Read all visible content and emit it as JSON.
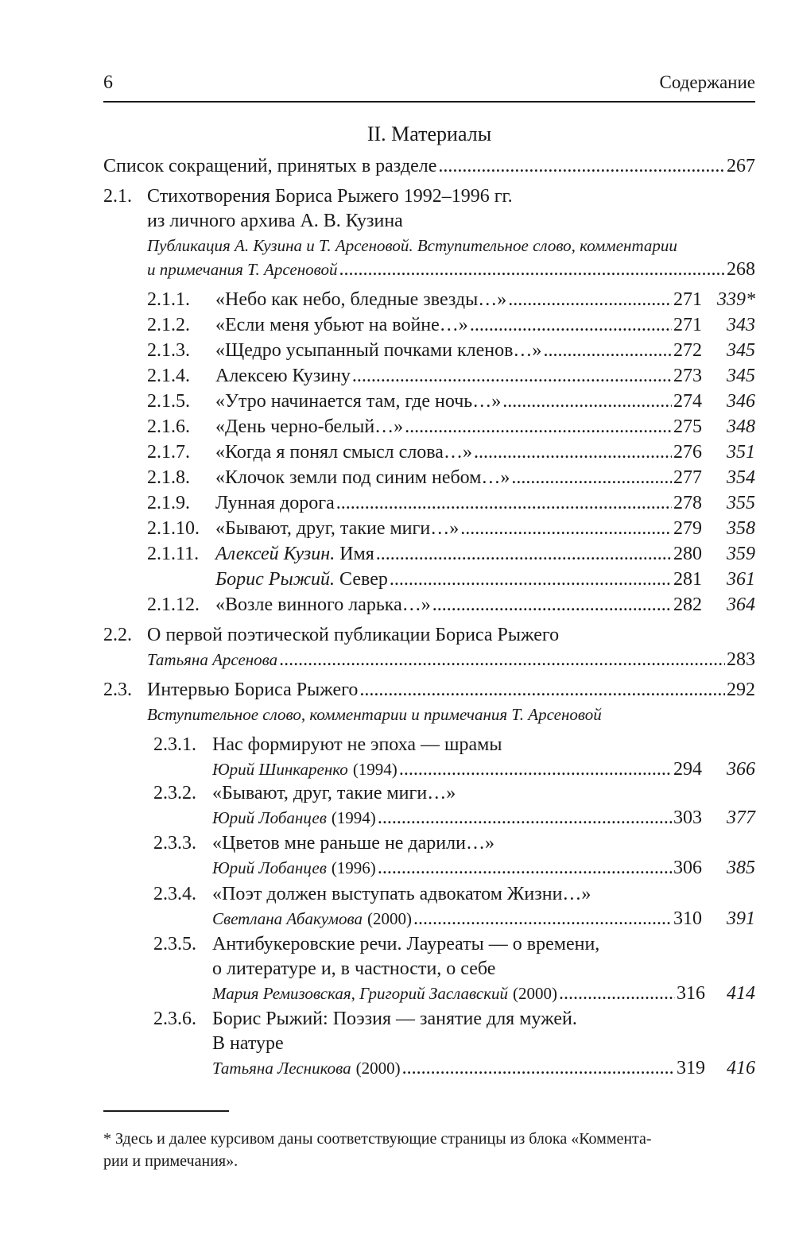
{
  "header": {
    "page_number": "6",
    "running_title": "Содержание"
  },
  "section_title": "II. Материалы",
  "abbrev": {
    "title": "Список сокращений, принятых в разделе",
    "page": "267"
  },
  "s21": {
    "num": "2.1.",
    "title_lines": [
      "Стихотворения Бориса Рыжего 1992–1996 гг.",
      "из личного архива А. В. Кузина"
    ],
    "note_lines": [
      "Публикация А. Кузина и Т. Арсеновой. Вступительное слово, комментарии",
      "и примечания Т. Арсеновой"
    ],
    "page": "268"
  },
  "s21_items": [
    {
      "num": "2.1.1.",
      "author": "",
      "title": "«Небо как небо, бледные звезды…»",
      "page": "271",
      "comment_page": "339*"
    },
    {
      "num": "2.1.2.",
      "author": "",
      "title": "«Если меня убьют на войне…»",
      "page": "271",
      "comment_page": "343"
    },
    {
      "num": "2.1.3.",
      "author": "",
      "title": "«Щедро усыпанный почками кленов…»",
      "page": "272",
      "comment_page": "345"
    },
    {
      "num": "2.1.4.",
      "author": "",
      "title": "Алексею Кузину",
      "page": "273",
      "comment_page": "345"
    },
    {
      "num": "2.1.5.",
      "author": "",
      "title": "«Утро начинается там, где ночь…»",
      "page": "274",
      "comment_page": "346"
    },
    {
      "num": "2.1.6.",
      "author": "",
      "title": "«День черно-белый…»",
      "page": "275",
      "comment_page": "348"
    },
    {
      "num": "2.1.7.",
      "author": "",
      "title": "«Когда я понял смысл слова…»",
      "page": "276",
      "comment_page": "351"
    },
    {
      "num": "2.1.8.",
      "author": "",
      "title": "«Клочок земли под синим небом…»",
      "page": "277",
      "comment_page": "354"
    },
    {
      "num": "2.1.9.",
      "author": "",
      "title": "Лунная дорога",
      "page": "278",
      "comment_page": "355"
    },
    {
      "num": "2.1.10.",
      "author": "",
      "title": "«Бывают, друг, такие миги…»",
      "page": "279",
      "comment_page": "358"
    },
    {
      "num": "2.1.11.",
      "author": "Алексей Кузин.",
      "title": "Имя",
      "page": "280",
      "comment_page": "359"
    },
    {
      "num": "",
      "author": "Борис Рыжий.",
      "title": "Север",
      "page": "281",
      "comment_page": "361"
    },
    {
      "num": "2.1.12.",
      "author": "",
      "title": "«Возле винного ларька…»",
      "page": "282",
      "comment_page": "364"
    }
  ],
  "s22": {
    "num": "2.2.",
    "title": "О первой поэтической публикации Бориса Рыжего",
    "author": "Татьяна Арсенова",
    "page": "283"
  },
  "s23": {
    "num": "2.3.",
    "title": "Интервью Бориса Рыжего",
    "page": "292",
    "note": "Вступительное слово, комментарии и примечания Т. Арсеновой"
  },
  "s23_items": [
    {
      "num": "2.3.1.",
      "title_lines": [
        "Нас формируют не эпоха — шрамы"
      ],
      "author": "Юрий Шинкаренко",
      "year": "(1994)",
      "page": "294",
      "comment_page": "366"
    },
    {
      "num": "2.3.2.",
      "title_lines": [
        "«Бывают, друг, такие миги…»"
      ],
      "author": "Юрий Лобанцев",
      "year": "(1994)",
      "page": "303",
      "comment_page": "377"
    },
    {
      "num": "2.3.3.",
      "title_lines": [
        "«Цветов мне раньше не дарили…»"
      ],
      "author": "Юрий Лобанцев",
      "year": "(1996)",
      "page": "306",
      "comment_page": "385"
    },
    {
      "num": "2.3.4.",
      "title_lines": [
        "«Поэт должен выступать адвокатом Жизни…»"
      ],
      "author": "Светлана Абакумова",
      "year": "(2000)",
      "page": "310",
      "comment_page": "391"
    },
    {
      "num": "2.3.5.",
      "title_lines": [
        "Антибукеровские речи. Лауреаты — о времени,",
        "о литературе и, в частности, о себе"
      ],
      "author": "Мария Ремизовская, Григорий Заславский",
      "year": "(2000)",
      "page": "316",
      "comment_page": "414"
    },
    {
      "num": "2.3.6.",
      "title_lines": [
        "Борис Рыжий: Поэзия — занятие для мужей.",
        "В натуре"
      ],
      "author": "Татьяна Лесникова",
      "year": "(2000)",
      "page": "319",
      "comment_page": "416"
    }
  ],
  "footnote": {
    "lines": [
      "* Здесь и далее курсивом даны соответствующие страницы из блока «Коммента-",
      "рии и примечания»."
    ]
  }
}
